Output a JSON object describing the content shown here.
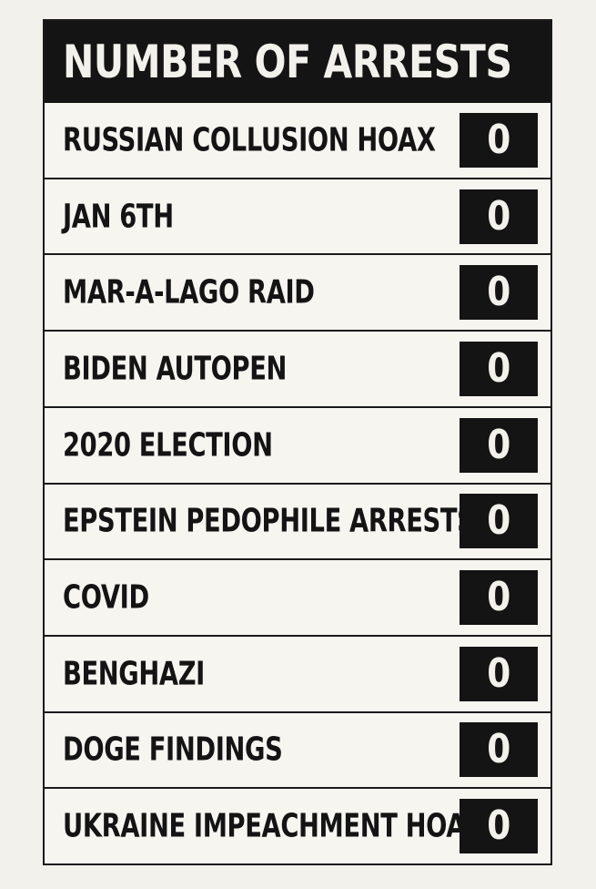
{
  "title": "NUMBER OF ARRESTS",
  "rows": [
    {
      "label": "RUSSIAN COLLUSION HOAX",
      "count": "0"
    },
    {
      "label": "JAN 6TH",
      "count": "0"
    },
    {
      "label": "MAR-A-LAGO RAID",
      "count": "0"
    },
    {
      "label": "BIDEN AUTOPEN",
      "count": "0"
    },
    {
      "label": "2020 ELECTION",
      "count": "0"
    },
    {
      "label": "EPSTEIN PEDOPHILE ARRESTS",
      "count": "0"
    },
    {
      "label": "COVID",
      "count": "0"
    },
    {
      "label": "BENGHAZI",
      "count": "0"
    },
    {
      "label": "DOGE FINDINGS",
      "count": "0"
    },
    {
      "label": "UKRAINE IMPEACHMENT HOAX",
      "count": "0"
    }
  ]
}
